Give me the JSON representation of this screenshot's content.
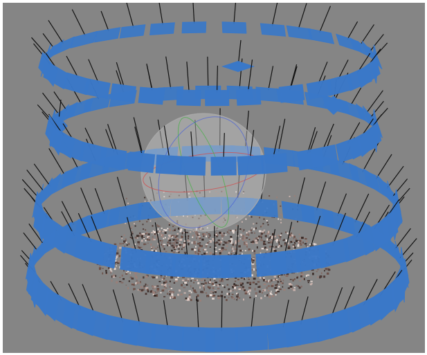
{
  "viewport": {
    "background_color": "#858585",
    "frame_color": "#ffffff",
    "camera_frustum_color": "#3a78c8",
    "camera_axis_color": "#111111",
    "sphere_fill": "#c8c8c8",
    "sphere_stroke": "#a8a8a8",
    "gizmo_colors": {
      "x": "#d05050",
      "y": "#40b040",
      "z": "#4a62d6"
    },
    "point_cloud_colors": [
      "#3a2c28",
      "#6b5048",
      "#9a7f78",
      "#c9b3ad",
      "#e6d8d2",
      "#4d3b37",
      "#826a64"
    ]
  }
}
